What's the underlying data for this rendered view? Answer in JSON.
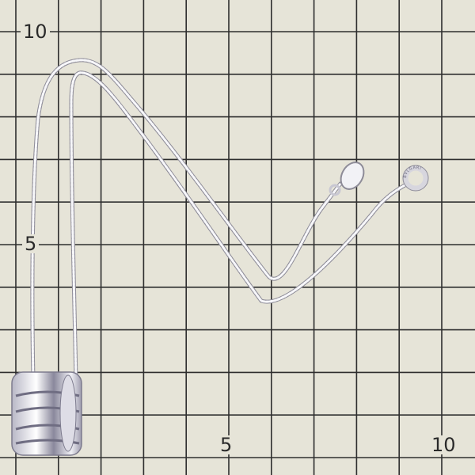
{
  "photo": {
    "subject": "silver chain necklace with ring pendant on measuring grid",
    "grid_labels": {
      "top_left": "10",
      "left_mid": "5",
      "bottom_mid": "5",
      "bottom_right": "10"
    },
    "tag_logo_text": "BVLGARI",
    "colors": {
      "background": "#e6e4d8",
      "grid_line": "#2e2e2e",
      "metal": "#f4f4f6",
      "metal_shadow": "#9a98a8"
    }
  }
}
